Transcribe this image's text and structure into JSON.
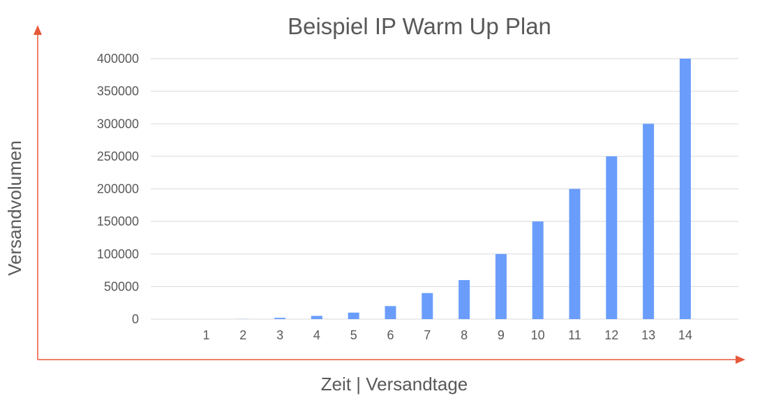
{
  "chart_data": {
    "type": "bar",
    "title": "Beispiel IP Warm Up Plan",
    "xlabel": "Zeit | Versandtage",
    "ylabel": "Versandvolumen",
    "categories": [
      "1",
      "2",
      "3",
      "4",
      "5",
      "6",
      "7",
      "8",
      "9",
      "10",
      "11",
      "12",
      "13",
      "14"
    ],
    "series": [
      {
        "values": [
          50,
          200,
          2000,
          5000,
          10000,
          20000,
          40000,
          60000,
          100000,
          150000,
          200000,
          250000,
          300000,
          400000
        ]
      }
    ],
    "yticks": [
      "0",
      "50000",
      "100000",
      "150000",
      "200000",
      "250000",
      "300000",
      "350000",
      "400000"
    ],
    "ylim": [
      0,
      400000
    ],
    "grid": true,
    "legend": "none",
    "colors": {
      "bar": "#6a9dfb",
      "grid": "#d9d9d9",
      "arrow": "#e8583a",
      "text": "#595959"
    }
  }
}
